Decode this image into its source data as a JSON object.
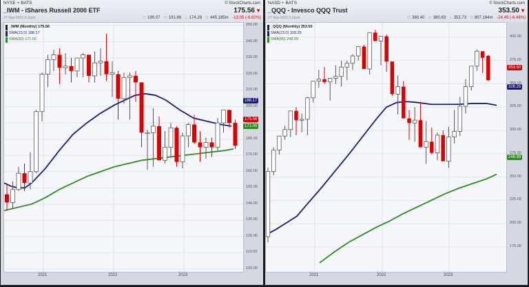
{
  "charts": [
    {
      "exchange": "NYSE + BATS",
      "title": "_IWM - iShares Russell 2000 ETF",
      "date": "27-Sep-2023 3:11pm",
      "brand": "© StockCharts.com",
      "price": "175.56",
      "ohlc": {
        "o_label": "O:",
        "o": "190.07",
        "h_label": "H:",
        "h": "191.86",
        "l_label": "L:",
        "l": "174.29",
        "v_label": "V:",
        "v": "445.185m",
        "change": "-13.05 (-6.92%)"
      },
      "legend": {
        "main": "_IWM (Monthly) 175.56",
        "sma23": "SMA(23,0) 188.17",
        "sma80": "SMA(80) 171.00"
      },
      "tags": {
        "sma23": "188.17",
        "price": "175.56",
        "sma80": "171.00"
      }
    },
    {
      "exchange": "NASD + BATS",
      "title": "_QQQ - Invesco QQQ Trust",
      "date": "27-Sep-2023 3:11pm",
      "brand": "© StockCharts.com",
      "price": "353.50",
      "ohlc": {
        "o_label": "O:",
        "o": "380.40",
        "h_label": "H:",
        "h": "380.83",
        "l_label": "L:",
        "l": "352.73",
        "v_label": "V:",
        "v": "807.164m",
        "change": "-24.49 (-6.48%)"
      },
      "legend": {
        "main": "_QQQ (Monthly) 353.50",
        "sma23": "SMA(23,0) 328.25",
        "sma80": "SMA(80) 248.99"
      },
      "tags": {
        "price": "353.50",
        "sma23": "328.25",
        "sma80": "248.99"
      }
    }
  ],
  "colors": {
    "up": "#ffffff",
    "up_border": "#555555",
    "down": "#dd0000",
    "sma23": "#1a1a7a",
    "sma80": "#2e8b1e",
    "grid": "#e1e4ec"
  },
  "chart_data": [
    {
      "type": "candlestick",
      "title": "_IWM - iShares Russell 2000 ETF (Monthly)",
      "xlabel": "",
      "ylabel": "Price",
      "x_ticks": [
        "2021",
        "2022",
        "2023"
      ],
      "y_ticks": [
        100,
        110,
        120,
        130,
        140,
        150,
        160,
        170,
        180,
        190,
        200,
        210,
        220,
        230,
        240,
        250
      ],
      "ylim": [
        100,
        250
      ],
      "grid": true,
      "candles": [
        [
          146,
          152,
          136,
          141
        ],
        [
          141,
          154,
          137,
          149
        ],
        [
          149,
          163,
          148,
          159
        ],
        [
          159,
          165,
          148,
          153
        ],
        [
          153,
          172,
          149,
          160
        ],
        [
          160,
          198,
          159,
          197
        ],
        [
          197,
          221,
          191,
          220
        ],
        [
          220,
          232,
          212,
          229
        ],
        [
          229,
          235,
          222,
          232
        ],
        [
          232,
          236,
          214,
          224
        ],
        [
          224,
          233,
          220,
          225
        ],
        [
          225,
          230,
          215,
          222
        ],
        [
          222,
          228,
          218,
          230
        ],
        [
          230,
          233,
          218,
          232
        ],
        [
          232,
          232,
          215,
          219
        ],
        [
          219,
          234,
          215,
          227
        ],
        [
          227,
          236,
          219,
          228
        ],
        [
          228,
          245,
          216,
          220
        ],
        [
          220,
          228,
          206,
          221
        ],
        [
          220,
          222,
          192,
          205
        ],
        [
          205,
          221,
          202,
          218
        ],
        [
          218,
          221,
          192,
          219
        ],
        [
          219,
          222,
          203,
          215
        ],
        [
          215,
          204,
          175,
          184
        ],
        [
          184,
          186,
          161,
          184
        ],
        [
          184,
          199,
          163,
          188
        ],
        [
          188,
          194,
          168,
          167
        ],
        [
          167,
          185,
          165,
          175
        ],
        [
          175,
          190,
          169,
          187
        ],
        [
          187,
          188,
          163,
          166
        ],
        [
          166,
          184,
          162,
          182
        ],
        [
          182,
          190,
          175,
          189
        ],
        [
          189,
          195,
          177,
          178
        ],
        [
          178,
          185,
          166,
          175
        ],
        [
          175,
          181,
          168,
          178
        ],
        [
          178,
          181,
          169,
          175
        ],
        [
          175,
          193,
          173,
          190
        ],
        [
          190,
          198,
          184,
          198
        ],
        [
          198,
          198,
          187,
          190
        ],
        [
          190,
          192,
          174,
          176
        ]
      ],
      "series": [
        {
          "name": "SMA(23,0)",
          "last": 188.17
        },
        {
          "name": "SMA(80)",
          "last": 171.0
        }
      ]
    },
    {
      "type": "candlestick",
      "title": "_QQQ - Invesco QQQ Trust (Monthly)",
      "xlabel": "",
      "ylabel": "Price",
      "x_ticks": [
        "2021",
        "2022",
        "2023"
      ],
      "y_ticks": [
        175,
        200,
        225,
        250,
        275,
        300,
        325,
        350,
        375,
        400
      ],
      "ylim": [
        160,
        420
      ],
      "grid": true,
      "candles": [
        [
          186,
          260,
          180,
          256
        ],
        [
          256,
          282,
          252,
          279
        ],
        [
          279,
          293,
          274,
          294
        ],
        [
          294,
          305,
          290,
          301
        ],
        [
          301,
          307,
          293,
          321
        ],
        [
          321,
          325,
          295,
          311
        ],
        [
          311,
          318,
          298,
          312
        ],
        [
          312,
          336,
          295,
          335
        ],
        [
          335,
          349,
          330,
          353
        ],
        [
          353,
          365,
          346,
          355
        ],
        [
          355,
          368,
          350,
          352
        ],
        [
          352,
          356,
          332,
          356
        ],
        [
          356,
          370,
          350,
          358
        ],
        [
          358,
          375,
          347,
          368
        ],
        [
          368,
          375,
          354,
          372
        ],
        [
          372,
          382,
          365,
          380
        ],
        [
          380,
          386,
          375,
          390
        ],
        [
          390,
          392,
          370,
          366
        ],
        [
          366,
          404,
          360,
          405
        ],
        [
          405,
          408,
          396,
          396
        ],
        [
          396,
          401,
          370,
          401
        ],
        [
          401,
          403,
          363,
          374
        ],
        [
          374,
          372,
          337,
          339
        ],
        [
          339,
          359,
          317,
          347
        ],
        [
          347,
          353,
          326,
          313
        ],
        [
          313,
          322,
          290,
          308
        ],
        [
          308,
          325,
          288,
          311
        ],
        [
          311,
          330,
          302,
          282
        ],
        [
          282,
          310,
          264,
          288
        ],
        [
          288,
          303,
          274,
          276
        ],
        [
          276,
          298,
          268,
          295
        ],
        [
          295,
          300,
          289,
          267
        ],
        [
          267,
          304,
          260,
          293
        ],
        [
          293,
          322,
          286,
          299
        ],
        [
          299,
          336,
          294,
          326
        ],
        [
          326,
          355,
          318,
          347
        ],
        [
          347,
          367,
          343,
          369
        ],
        [
          369,
          387,
          364,
          385
        ],
        [
          385,
          384,
          362,
          378
        ],
        [
          380,
          381,
          353,
          354
        ]
      ],
      "series": [
        {
          "name": "SMA(23,0)",
          "last": 328.25
        },
        {
          "name": "SMA(80)",
          "last": 248.99
        }
      ]
    }
  ]
}
